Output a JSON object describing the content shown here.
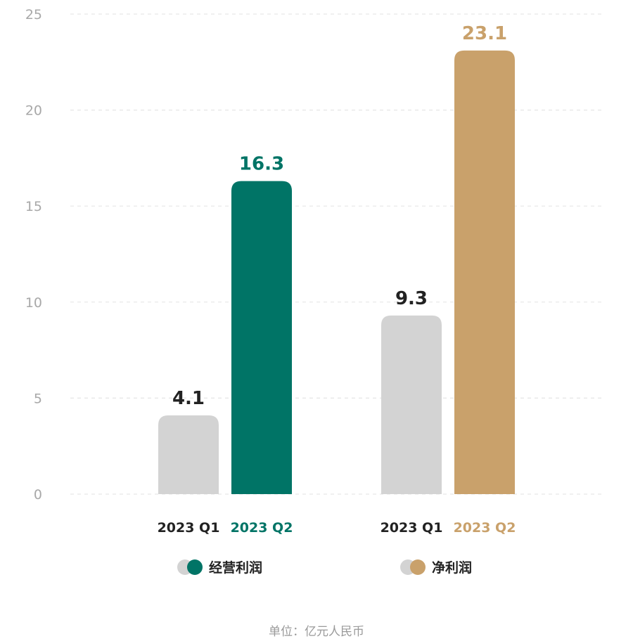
{
  "chart_data": {
    "type": "bar",
    "ylim": [
      0,
      25
    ],
    "yticks": [
      0,
      5,
      10,
      15,
      20,
      25
    ],
    "groups": [
      {
        "name": "经营利润",
        "categories": [
          "2023 Q1",
          "2023 Q2"
        ],
        "values": [
          4.1,
          16.3
        ],
        "value_labels": [
          "4.1",
          "16.3"
        ],
        "colors": [
          "#d3d3d3",
          "#007466"
        ],
        "label_colors": [
          "#222222",
          "#007466"
        ]
      },
      {
        "name": "净利润",
        "categories": [
          "2023 Q1",
          "2023 Q2"
        ],
        "values": [
          9.3,
          23.1
        ],
        "value_labels": [
          "9.3",
          "23.1"
        ],
        "colors": [
          "#d3d3d3",
          "#c9a16b"
        ],
        "label_colors": [
          "#222222",
          "#c9a16b"
        ]
      }
    ],
    "unit_note": "单位：亿元人民币"
  }
}
